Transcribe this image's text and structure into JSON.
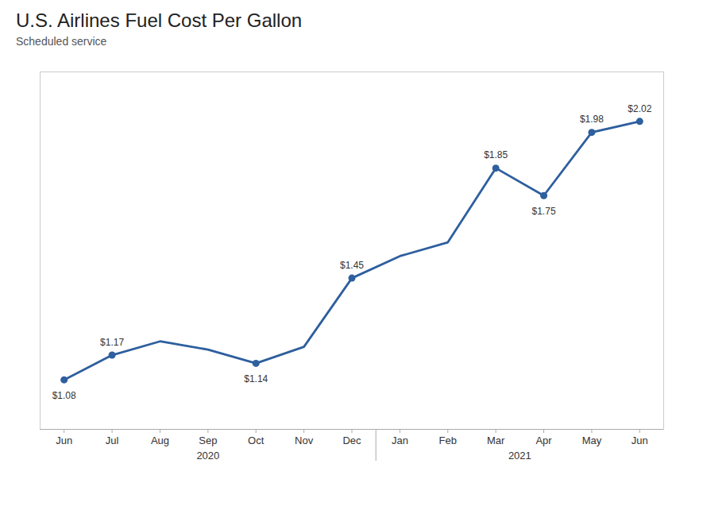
{
  "chart_data": {
    "type": "line",
    "title": "U.S. Airlines Fuel Cost Per Gallon",
    "subtitle": "Scheduled service",
    "categories": [
      "Jun",
      "Jul",
      "Aug",
      "Sep",
      "Oct",
      "Nov",
      "Dec",
      "Jan",
      "Feb",
      "Mar",
      "Apr",
      "May",
      "Jun"
    ],
    "values": [
      1.08,
      1.17,
      1.22,
      1.19,
      1.14,
      1.2,
      1.45,
      1.53,
      1.58,
      1.85,
      1.75,
      1.98,
      2.02
    ],
    "value_labels": [
      "$1.08",
      "$1.17",
      null,
      null,
      "$1.14",
      null,
      "$1.45",
      null,
      null,
      "$1.85",
      "$1.75",
      "$1.98",
      "$2.02"
    ],
    "data_labels": true,
    "color": "#2E5F9E",
    "marker": "circle",
    "ylim": [
      0.9,
      2.2
    ],
    "tick_labels": "x",
    "grid": false,
    "annotations": [
      "2020",
      "2021"
    ]
  }
}
